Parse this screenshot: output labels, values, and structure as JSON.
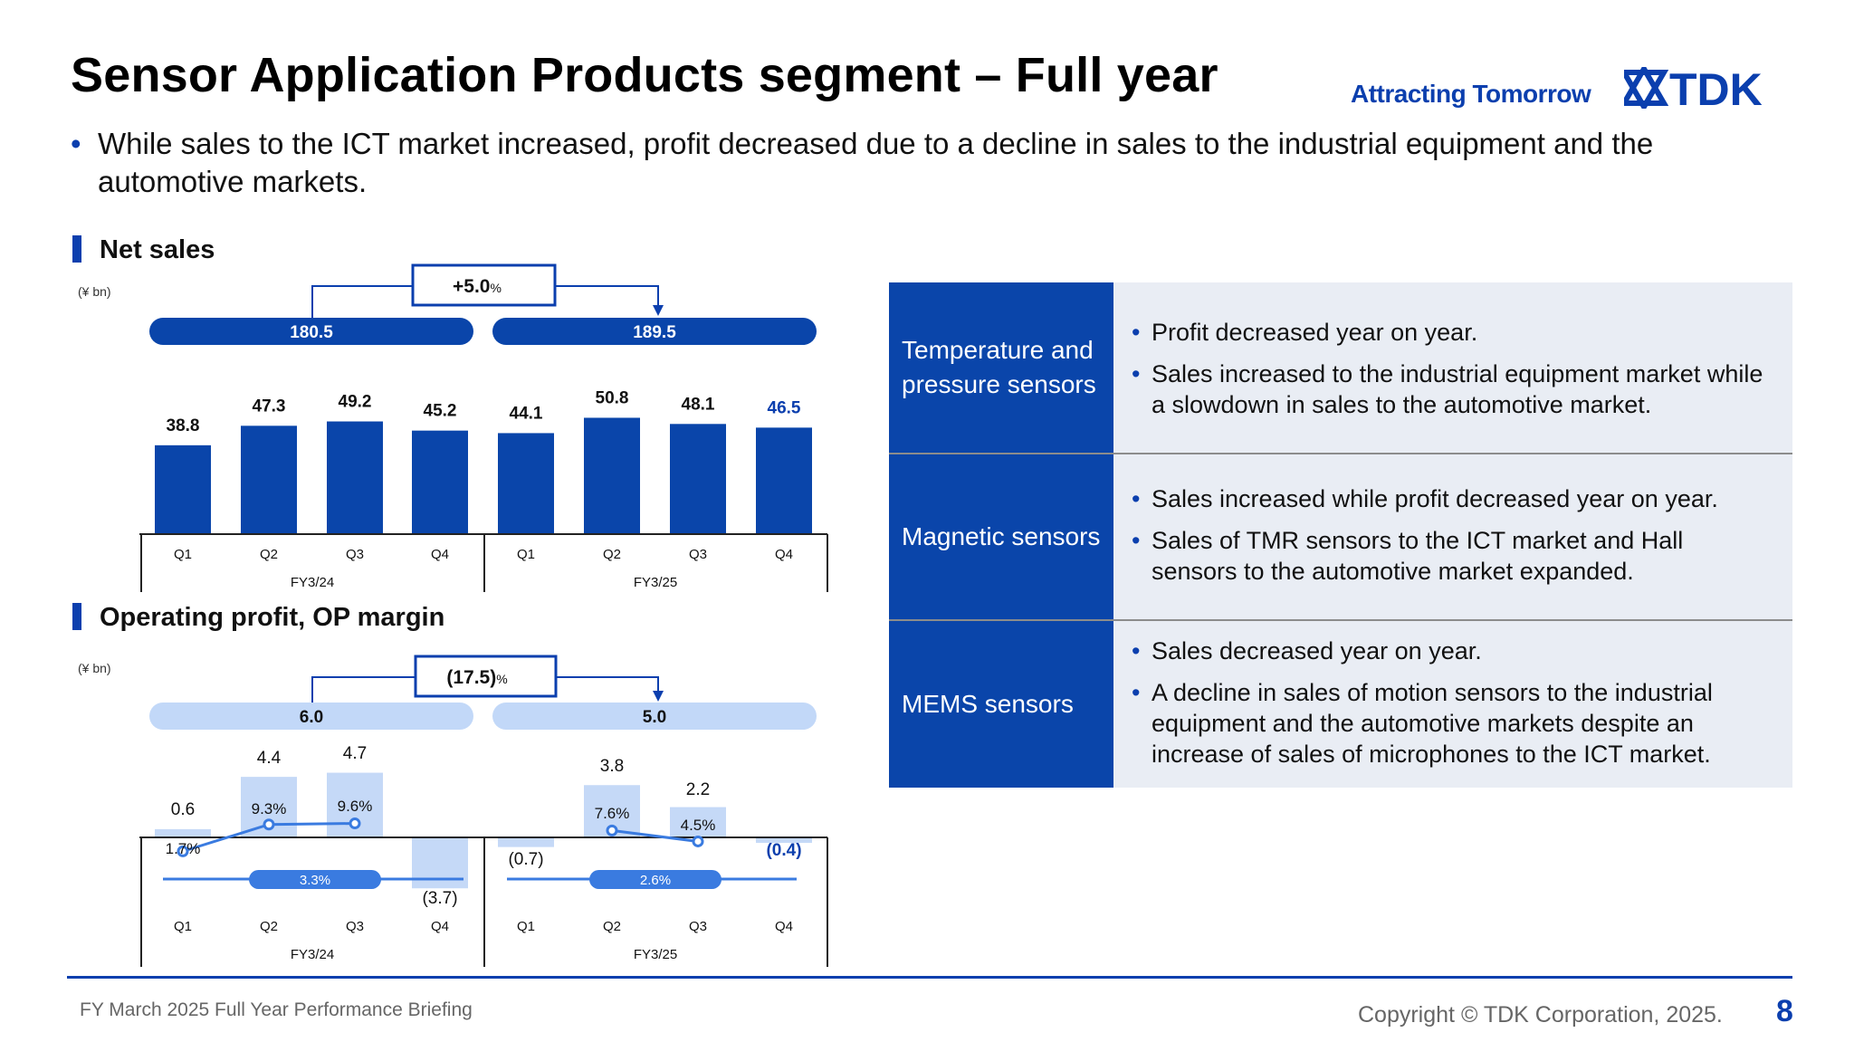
{
  "slide": {
    "title": "Sensor Application Products segment – Full year",
    "tagline": "Attracting Tomorrow",
    "logo_text": "TDK",
    "bullet": "While sales to the ICT market increased, profit decreased due to a decline in sales to the industrial equipment and the automotive markets."
  },
  "net_sales": {
    "heading": "Net sales",
    "unit": "(¥ bn)"
  },
  "operating": {
    "heading": "Operating profit, OP margin",
    "unit": "(¥ bn)"
  },
  "chart_data": [
    {
      "type": "bar",
      "title": "Net sales",
      "unit": "(¥ bn)",
      "categories": [
        "Q1",
        "Q2",
        "Q3",
        "Q4",
        "Q1",
        "Q2",
        "Q3",
        "Q4"
      ],
      "groups": [
        "FY3/24",
        "FY3/25"
      ],
      "values": [
        38.8,
        47.3,
        49.2,
        45.2,
        44.1,
        50.8,
        48.1,
        46.5
      ],
      "labels": [
        "38.8",
        "47.3",
        "49.2",
        "45.2",
        "44.1",
        "50.8",
        "48.1",
        "46.5"
      ],
      "totals": [
        "180.5",
        "189.5"
      ],
      "change": "+5.0",
      "change_unit": "%",
      "ylim": [
        0,
        60
      ]
    },
    {
      "type": "bar",
      "title": "Operating profit, OP margin",
      "unit": "(¥ bn)",
      "categories": [
        "Q1",
        "Q2",
        "Q3",
        "Q4",
        "Q1",
        "Q2",
        "Q3",
        "Q4"
      ],
      "groups": [
        "FY3/24",
        "FY3/25"
      ],
      "values": [
        0.6,
        4.4,
        4.7,
        -3.7,
        -0.7,
        3.8,
        2.2,
        -0.4
      ],
      "labels": [
        "0.6",
        "4.4",
        "4.7",
        "(3.7)",
        "(0.7)",
        "3.8",
        "2.2",
        "(0.4)"
      ],
      "totals": [
        "6.0",
        "5.0"
      ],
      "change": "(17.5)",
      "change_unit": "%",
      "margin_series": [
        {
          "name": "FY3/24 OP margin",
          "indices": [
            0,
            1,
            2
          ],
          "values": [
            1.7,
            9.3,
            9.6
          ],
          "labels": [
            "1.7%",
            "9.3%",
            "9.6%"
          ]
        },
        {
          "name": "FY3/25 OP margin",
          "indices": [
            5,
            6
          ],
          "values": [
            7.6,
            4.5
          ],
          "labels": [
            "7.6%",
            "4.5%"
          ]
        }
      ],
      "annual_margins": [
        "3.3%",
        "2.6%"
      ],
      "ylim": [
        -5,
        10
      ]
    }
  ],
  "segments": [
    {
      "name": "Temperature and pressure sensors",
      "points": [
        "Profit decreased year on year.",
        "Sales increased to the industrial equipment market while a slowdown in sales to the automotive market."
      ]
    },
    {
      "name": "Magnetic sensors",
      "points": [
        "Sales increased while profit decreased year on year.",
        "Sales of TMR sensors to the ICT market and Hall sensors to the automotive market expanded."
      ]
    },
    {
      "name": "MEMS sensors",
      "points": [
        "Sales decreased year on year.",
        "A decline in sales of motion sensors to the industrial equipment and the automotive markets despite an increase of sales of microphones to the ICT market."
      ]
    }
  ],
  "footer": {
    "left": "FY March 2025 Full Year Performance Briefing",
    "copyright": "Copyright  © TDK Corporation, 2025.",
    "page": "8"
  },
  "colors": {
    "brand": "#0b3fae",
    "bar_dark": "#0a45aa",
    "bar_light": "#c5d9f7",
    "pill_light": "#c2d8f8",
    "line": "#3a7be0",
    "panel": "#e9edf4"
  }
}
